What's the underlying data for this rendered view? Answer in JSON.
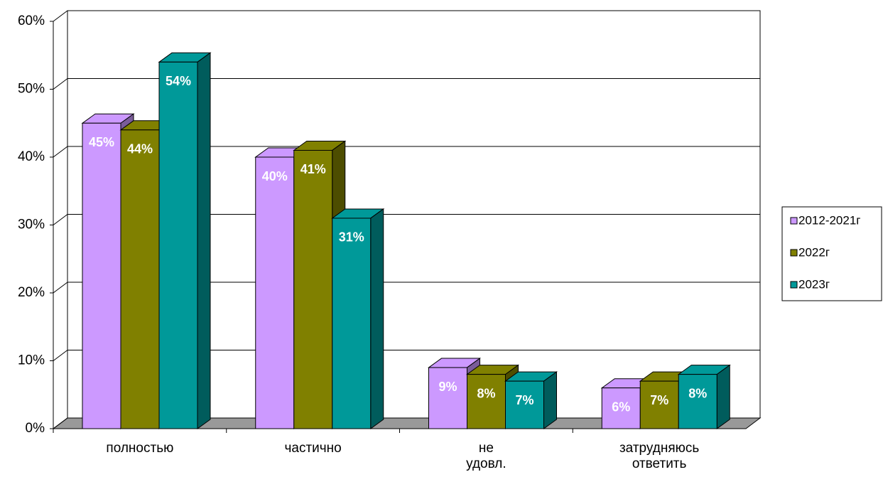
{
  "chart_data": {
    "type": "bar3d",
    "categories": [
      "полностью",
      "частично",
      "не удовл.",
      "затрудняюсь ответить"
    ],
    "series": [
      {
        "name": "2012-2021г",
        "color": "#cc99ff",
        "values": [
          45,
          40,
          9,
          6
        ],
        "value_labels": [
          "45%",
          "40%",
          "9%",
          "6%"
        ]
      },
      {
        "name": "2022г",
        "color": "#808000",
        "values": [
          44,
          41,
          8,
          7
        ],
        "value_labels": [
          "44%",
          "41%",
          "8%",
          "7%"
        ]
      },
      {
        "name": "2023г",
        "color": "#009999",
        "values": [
          54,
          31,
          7,
          8
        ],
        "value_labels": [
          "54%",
          "31%",
          "7%",
          "8%"
        ]
      }
    ],
    "ylim": [
      0,
      60
    ],
    "yticks": [
      {
        "value": 0,
        "label": "0%"
      },
      {
        "value": 10,
        "label": "10%"
      },
      {
        "value": 20,
        "label": "20%"
      },
      {
        "value": 30,
        "label": "30%"
      },
      {
        "value": 40,
        "label": "40%"
      },
      {
        "value": 50,
        "label": "50%"
      },
      {
        "value": 60,
        "label": "60%"
      }
    ],
    "grid": true,
    "legend": "right"
  }
}
